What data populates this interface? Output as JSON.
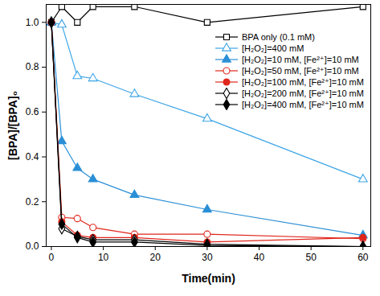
{
  "chart_data": {
    "type": "line",
    "x_label": "Time(min)",
    "y_label": "[BPA]/[BPA]₀",
    "x": [
      0,
      2,
      5,
      8,
      16,
      30,
      60
    ],
    "xlim": [
      -1,
      61.5
    ],
    "xticks": [
      0,
      10,
      20,
      30,
      40,
      50,
      60
    ],
    "ylim": [
      0,
      1.08
    ],
    "yticks": [
      {
        "value": 0,
        "label": "0.0"
      },
      {
        "value": 0.2,
        "label": "0.2"
      },
      {
        "value": 0.4,
        "label": "0.4"
      },
      {
        "value": 0.6,
        "label": "0.6"
      },
      {
        "value": 0.8,
        "label": "0.8"
      },
      {
        "value": 1.0,
        "label": "1.0"
      }
    ],
    "grid": false,
    "legend": "upper right",
    "series": [
      {
        "name": "BPA only (0.1 mM)",
        "color": "#000000",
        "marker": "square-open",
        "values": [
          1.0,
          1.07,
          1.0,
          1.07,
          1.07,
          1.0,
          1.07
        ]
      },
      {
        "name": "[H₂O₂]=400 mM",
        "color": "#3da5e6",
        "marker": "triangle-open",
        "values": [
          1.0,
          0.99,
          0.76,
          0.75,
          0.68,
          0.57,
          0.3
        ]
      },
      {
        "name": "[H₂O₂]=10 mM, [Fe²⁺]=10 mM",
        "color": "#2a8fd6",
        "marker": "triangle",
        "values": [
          1.0,
          0.47,
          0.35,
          0.3,
          0.23,
          0.165,
          0.05
        ]
      },
      {
        "name": "[H₂O₂]=50 mM, [Fe²⁺]=10 mM",
        "color": "#e0261c",
        "marker": "circle-open",
        "values": [
          1.0,
          0.13,
          0.125,
          0.085,
          0.055,
          0.055,
          0.035
        ]
      },
      {
        "name": "[H₂O₂]=100 mM, [Fe²⁺]=10 mM",
        "color": "#e0261c",
        "marker": "circle",
        "values": [
          1.0,
          0.11,
          0.05,
          0.04,
          0.04,
          0.02,
          0.04
        ]
      },
      {
        "name": "[H₂O₂]=200 mM, [Fe²⁺]=10 mM",
        "color": "#000000",
        "marker": "diamond-open",
        "values": [
          1.0,
          0.08,
          0.045,
          0.03,
          0.03,
          0.01,
          0.0
        ]
      },
      {
        "name": "[H₂O₂]=400 mM, [Fe²⁺]=10 mM",
        "color": "#000000",
        "marker": "diamond",
        "values": [
          1.0,
          0.1,
          0.04,
          0.02,
          0.02,
          0.005,
          0.0
        ]
      }
    ]
  }
}
